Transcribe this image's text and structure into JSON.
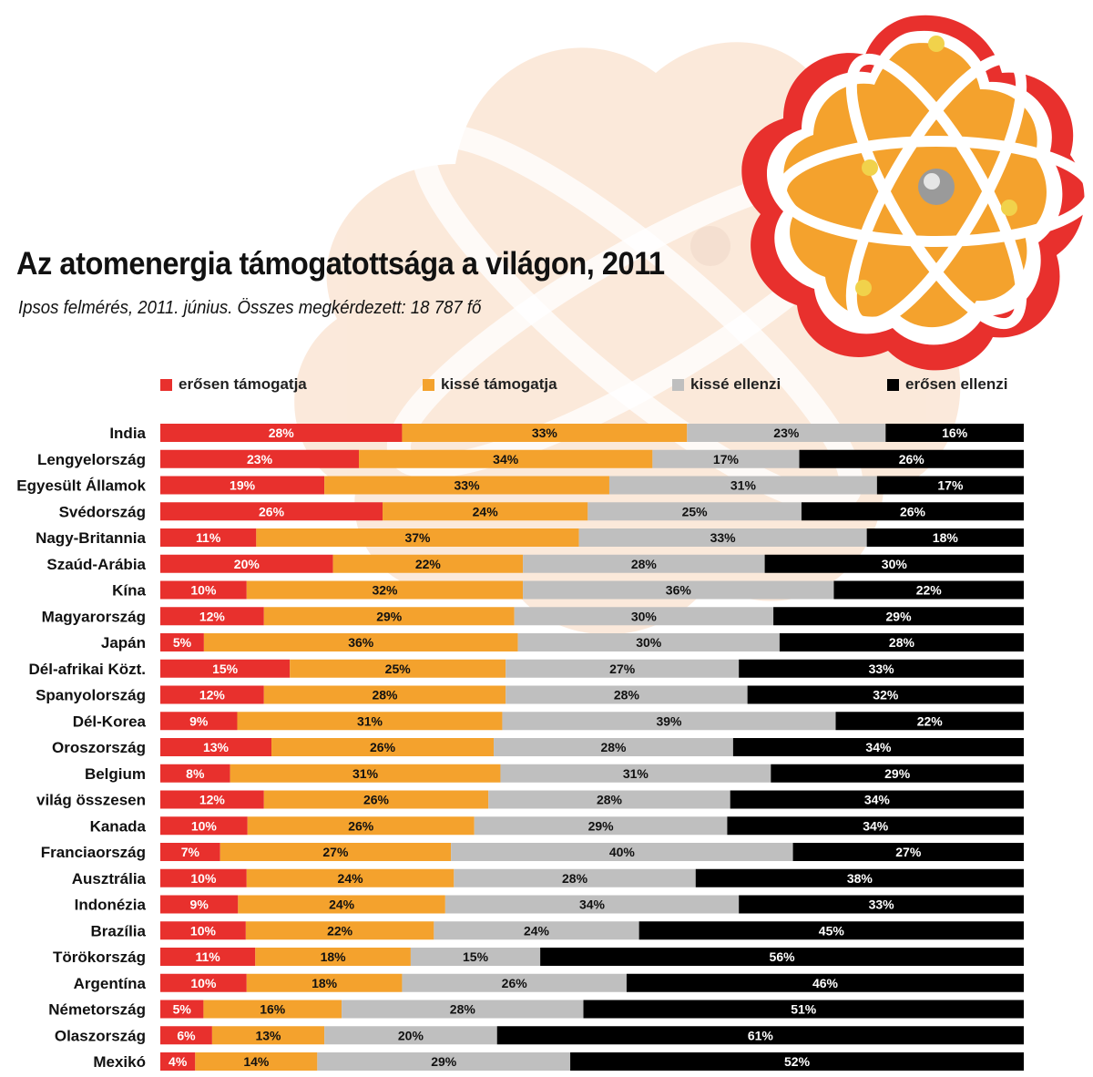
{
  "title": "Az atomenergia támogatottsága a világon, 2011",
  "subtitle": "Ipsos felmérés, 2011. június. Összes megkérdezett: 18 787 fő",
  "legend": [
    {
      "label": "erősen támogatja",
      "color": "#e8302d"
    },
    {
      "label": "kissé támogatja",
      "color": "#f4a22d"
    },
    {
      "label": "kissé ellenzi",
      "color": "#bfbfbf"
    },
    {
      "label": "erősen ellenzi",
      "color": "#000000"
    }
  ],
  "chart_data": {
    "type": "bar",
    "orientation": "horizontal",
    "stacked": true,
    "percent_stacked": true,
    "title": "Az atomenergia támogatottsága a világon, 2011",
    "subtitle": "Ipsos felmérés, 2011. június. Összes megkérdezett: 18 787 fő",
    "legend_position": "top",
    "grid": false,
    "unit": "%",
    "categories": [
      "India",
      "Lengyelország",
      "Egyesült Államok",
      "Svédország",
      "Nagy-Britannia",
      "Szaúd-Arábia",
      "Kína",
      "Magyarország",
      "Japán",
      "Dél-afrikai Közt.",
      "Spanyolország",
      "Dél-Korea",
      "Oroszország",
      "Belgium",
      "világ összesen",
      "Kanada",
      "Franciaország",
      "Ausztrália",
      "Indonézia",
      "Brazília",
      "Törökország",
      "Argentína",
      "Németország",
      "Olaszország",
      "Mexikó"
    ],
    "series": [
      {
        "name": "erősen támogatja",
        "color": "#e8302d",
        "label_color": "#ffffff",
        "values": [
          28,
          23,
          19,
          26,
          11,
          20,
          10,
          12,
          5,
          15,
          12,
          9,
          13,
          8,
          12,
          10,
          7,
          10,
          9,
          10,
          11,
          10,
          5,
          6,
          4
        ]
      },
      {
        "name": "kissé támogatja",
        "color": "#f4a22d",
        "label_color": "#111111",
        "values": [
          33,
          34,
          33,
          24,
          37,
          22,
          32,
          29,
          36,
          25,
          28,
          31,
          26,
          31,
          26,
          26,
          27,
          24,
          24,
          22,
          18,
          18,
          16,
          13,
          14
        ]
      },
      {
        "name": "kissé ellenzi",
        "color": "#bfbfbf",
        "label_color": "#111111",
        "values": [
          23,
          17,
          31,
          25,
          33,
          28,
          36,
          30,
          30,
          27,
          28,
          39,
          28,
          31,
          28,
          29,
          40,
          28,
          34,
          24,
          15,
          26,
          28,
          20,
          29
        ]
      },
      {
        "name": "erősen ellenzi",
        "color": "#000000",
        "label_color": "#ffffff",
        "values": [
          16,
          26,
          17,
          26,
          18,
          30,
          22,
          29,
          28,
          33,
          32,
          22,
          34,
          29,
          34,
          34,
          27,
          38,
          33,
          45,
          56,
          46,
          51,
          61,
          52
        ]
      }
    ]
  }
}
